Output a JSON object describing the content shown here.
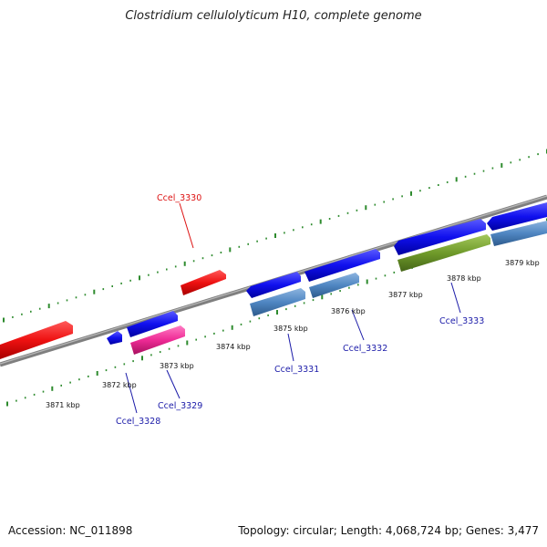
{
  "title": "Clostridium cellulolyticum H10, complete genome",
  "footer": {
    "accession": "Accession: NC_011898",
    "summary": "Topology: circular; Length: 4,068,724 bp; Genes: 3,477"
  },
  "colors": {
    "backbone": "#8a8a8a",
    "ticks": "#2e8b2e",
    "forward_gene": "#1010ee",
    "reverse_gene": "#ee1111",
    "cds_steelblue": "#4f86c2",
    "cds_pink": "#ee2a95",
    "cds_olive": "#6f9a2a",
    "label_blue": "#1a1aa8",
    "label_red": "#dd1111"
  },
  "scale_labels": [
    "3871 kbp",
    "3872 kbp",
    "3873 kbp",
    "3874 kbp",
    "3875 kbp",
    "3876 kbp",
    "3877 kbp",
    "3878 kbp",
    "3879 kbp"
  ],
  "gene_labels": [
    {
      "name": "Ccel_3330",
      "color": "red"
    },
    {
      "name": "Ccel_3328",
      "color": "blue"
    },
    {
      "name": "Ccel_3329",
      "color": "blue"
    },
    {
      "name": "Ccel_3331",
      "color": "blue"
    },
    {
      "name": "Ccel_3332",
      "color": "blue"
    },
    {
      "name": "Ccel_3333",
      "color": "blue"
    }
  ]
}
